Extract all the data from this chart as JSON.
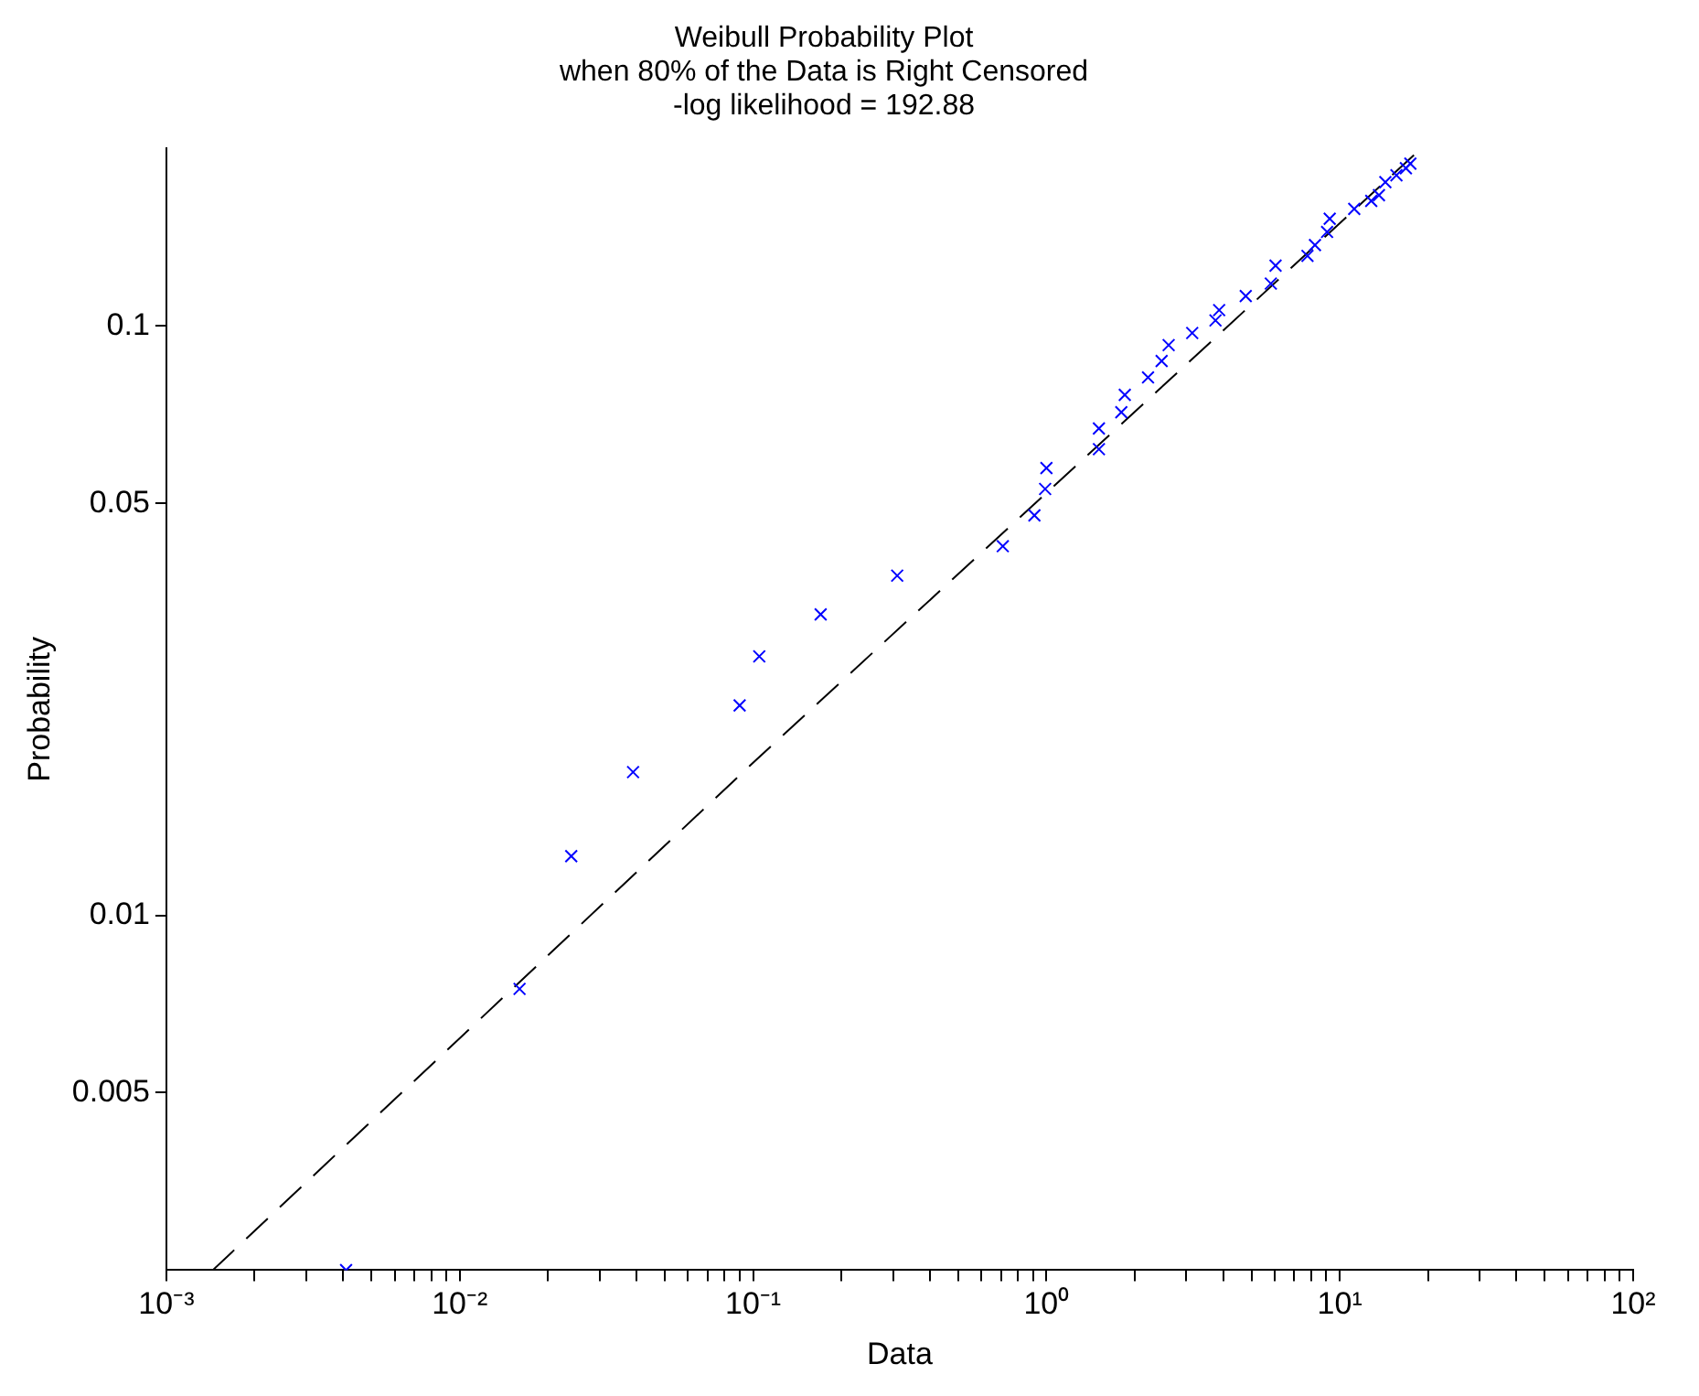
{
  "chart_data": {
    "type": "scatter",
    "title": "Weibull Probability Plot\nwhen 80% of the Data is Right Censored\n-log likelihood = 192.88",
    "xlabel": "Data",
    "ylabel": "Probability",
    "log": "xy",
    "grid": false,
    "legend": false,
    "marker": "cross",
    "xlim": [
      0.001,
      100
    ],
    "xticks": [
      {
        "value": 0.001,
        "label": "10⁻³"
      },
      {
        "value": 0.002,
        "label": null
      },
      {
        "value": 0.003,
        "label": null
      },
      {
        "value": 0.004,
        "label": null
      },
      {
        "value": 0.005,
        "label": null
      },
      {
        "value": 0.006,
        "label": null
      },
      {
        "value": 0.007,
        "label": null
      },
      {
        "value": 0.008,
        "label": null
      },
      {
        "value": 0.009,
        "label": null
      },
      {
        "value": 0.01,
        "label": "10⁻²"
      },
      {
        "value": 0.02,
        "label": null
      },
      {
        "value": 0.03,
        "label": null
      },
      {
        "value": 0.04,
        "label": null
      },
      {
        "value": 0.05,
        "label": null
      },
      {
        "value": 0.06,
        "label": null
      },
      {
        "value": 0.07,
        "label": null
      },
      {
        "value": 0.08,
        "label": null
      },
      {
        "value": 0.09,
        "label": null
      },
      {
        "value": 0.1,
        "label": "10⁻¹"
      },
      {
        "value": 0.2,
        "label": null
      },
      {
        "value": 0.3,
        "label": null
      },
      {
        "value": 0.4,
        "label": null
      },
      {
        "value": 0.5,
        "label": null
      },
      {
        "value": 0.6,
        "label": null
      },
      {
        "value": 0.7,
        "label": null
      },
      {
        "value": 0.8,
        "label": null
      },
      {
        "value": 0.9,
        "label": null
      },
      {
        "value": 1,
        "label": "10⁰"
      },
      {
        "value": 2,
        "label": null
      },
      {
        "value": 3,
        "label": null
      },
      {
        "value": 4,
        "label": null
      },
      {
        "value": 5,
        "label": null
      },
      {
        "value": 6,
        "label": null
      },
      {
        "value": 7,
        "label": null
      },
      {
        "value": 8,
        "label": null
      },
      {
        "value": 9,
        "label": null
      },
      {
        "value": 10,
        "label": "10¹"
      },
      {
        "value": 20,
        "label": null
      },
      {
        "value": 30,
        "label": null
      },
      {
        "value": 40,
        "label": null
      },
      {
        "value": 50,
        "label": null
      },
      {
        "value": 60,
        "label": null
      },
      {
        "value": 70,
        "label": null
      },
      {
        "value": 80,
        "label": null
      },
      {
        "value": 90,
        "label": null
      },
      {
        "value": 100,
        "label": "10²"
      }
    ],
    "ylim": [
      0.0025,
      0.2
    ],
    "yticks": [
      0.005,
      0.01,
      0.05,
      0.1
    ],
    "series": [
      {
        "color": "#0000ff",
        "x": [
          0.0041,
          0.016,
          0.024,
          0.039,
          0.09,
          0.105,
          0.17,
          0.31,
          0.71,
          0.91,
          0.99,
          1.0,
          1.51,
          1.51,
          1.8,
          1.85,
          2.22,
          2.47,
          2.61,
          3.14,
          3.77,
          3.88,
          4.78,
          5.82,
          6.04,
          7.76,
          8.23,
          9.05,
          9.24,
          11.2,
          12.8,
          13.6,
          14.3,
          15.6,
          16.8,
          17.4
        ],
        "values": [
          0.0025,
          0.0075,
          0.0126,
          0.0175,
          0.0227,
          0.0275,
          0.0324,
          0.0377,
          0.0423,
          0.0477,
          0.0529,
          0.0574,
          0.0618,
          0.067,
          0.0714,
          0.0764,
          0.0818,
          0.0872,
          0.0928,
          0.0973,
          0.1022,
          0.1064,
          0.1124,
          0.118,
          0.1266,
          0.1315,
          0.1372,
          0.1444,
          0.152,
          0.158,
          0.163,
          0.1667,
          0.1754,
          0.1802,
          0.1852,
          0.1886
        ]
      },
      {
        "type": "line",
        "color": "#000000",
        "line_style": "dashed",
        "marker": "none",
        "x": [
          0.00144,
          0.103,
          17.9
        ],
        "values": [
          0.0025,
          0.0184,
          0.195
        ]
      }
    ]
  }
}
